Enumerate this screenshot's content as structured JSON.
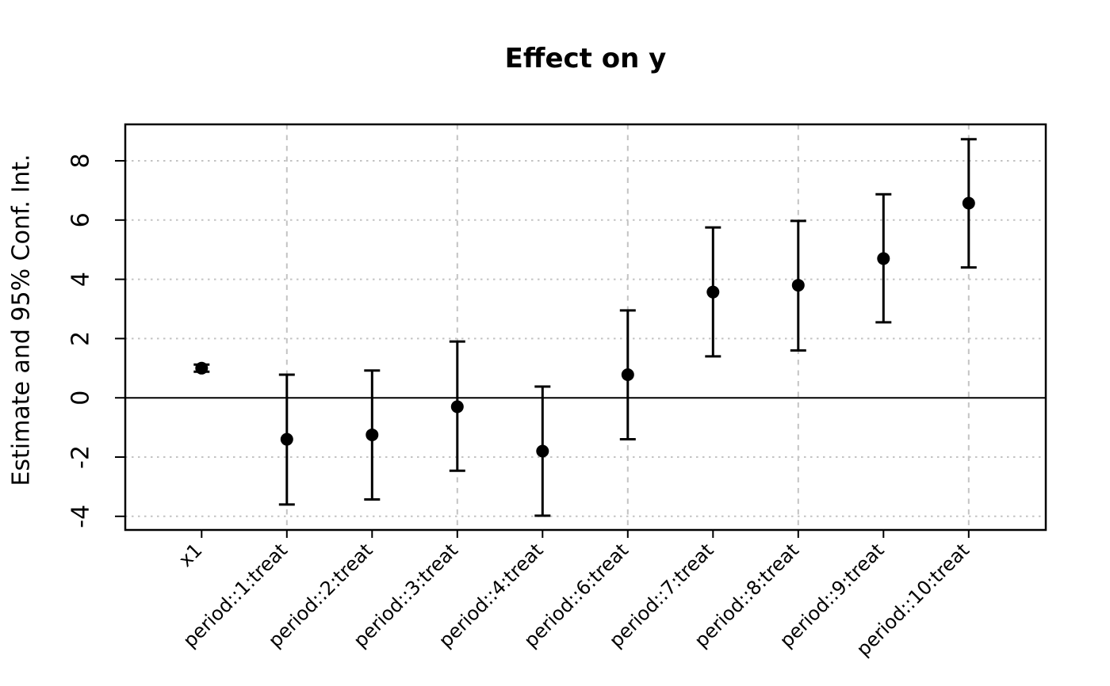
{
  "title": "Effect on y",
  "ylabel": "Estimate and 95% Conf. Int.",
  "chart_data": {
    "type": "scatter",
    "subtype": "coefficient-plot-with-error-bars",
    "title": "Effect on y",
    "xlabel": "",
    "ylabel": "Estimate and 95% Conf. Int.",
    "categories": [
      "x1",
      "period::1:treat",
      "period::2:treat",
      "period::3:treat",
      "period::4:treat",
      "period::6:treat",
      "period::7:treat",
      "period::8:treat",
      "period::9:treat",
      "period::10:treat"
    ],
    "series": [
      {
        "name": "estimate",
        "values": [
          1.0,
          -1.4,
          -1.25,
          -0.3,
          -1.8,
          0.78,
          3.57,
          3.8,
          4.7,
          6.57
        ]
      }
    ],
    "conf_low": [
      0.88,
      -3.6,
      -3.43,
      -2.46,
      -3.98,
      -1.4,
      1.4,
      1.6,
      2.55,
      4.4
    ],
    "conf_high": [
      1.12,
      0.78,
      0.92,
      1.9,
      0.38,
      2.95,
      5.75,
      5.97,
      6.87,
      8.73
    ],
    "yticks": [
      8,
      6,
      4,
      2,
      0,
      -2,
      -4
    ],
    "ylim": [
      -4.5,
      9.25
    ],
    "zero_line_y": 0,
    "grid": {
      "horizontal_on": true,
      "vertical_at_categories": [
        "period::1:treat",
        "period::3:treat",
        "period::6:treat",
        "period::8:treat",
        "period::10:treat"
      ]
    },
    "legend": "none",
    "colors": {
      "points": "#000000",
      "error_bars": "#000000",
      "grid": "#c3c3c3",
      "axis": "#000000",
      "background": "#ffffff"
    }
  }
}
